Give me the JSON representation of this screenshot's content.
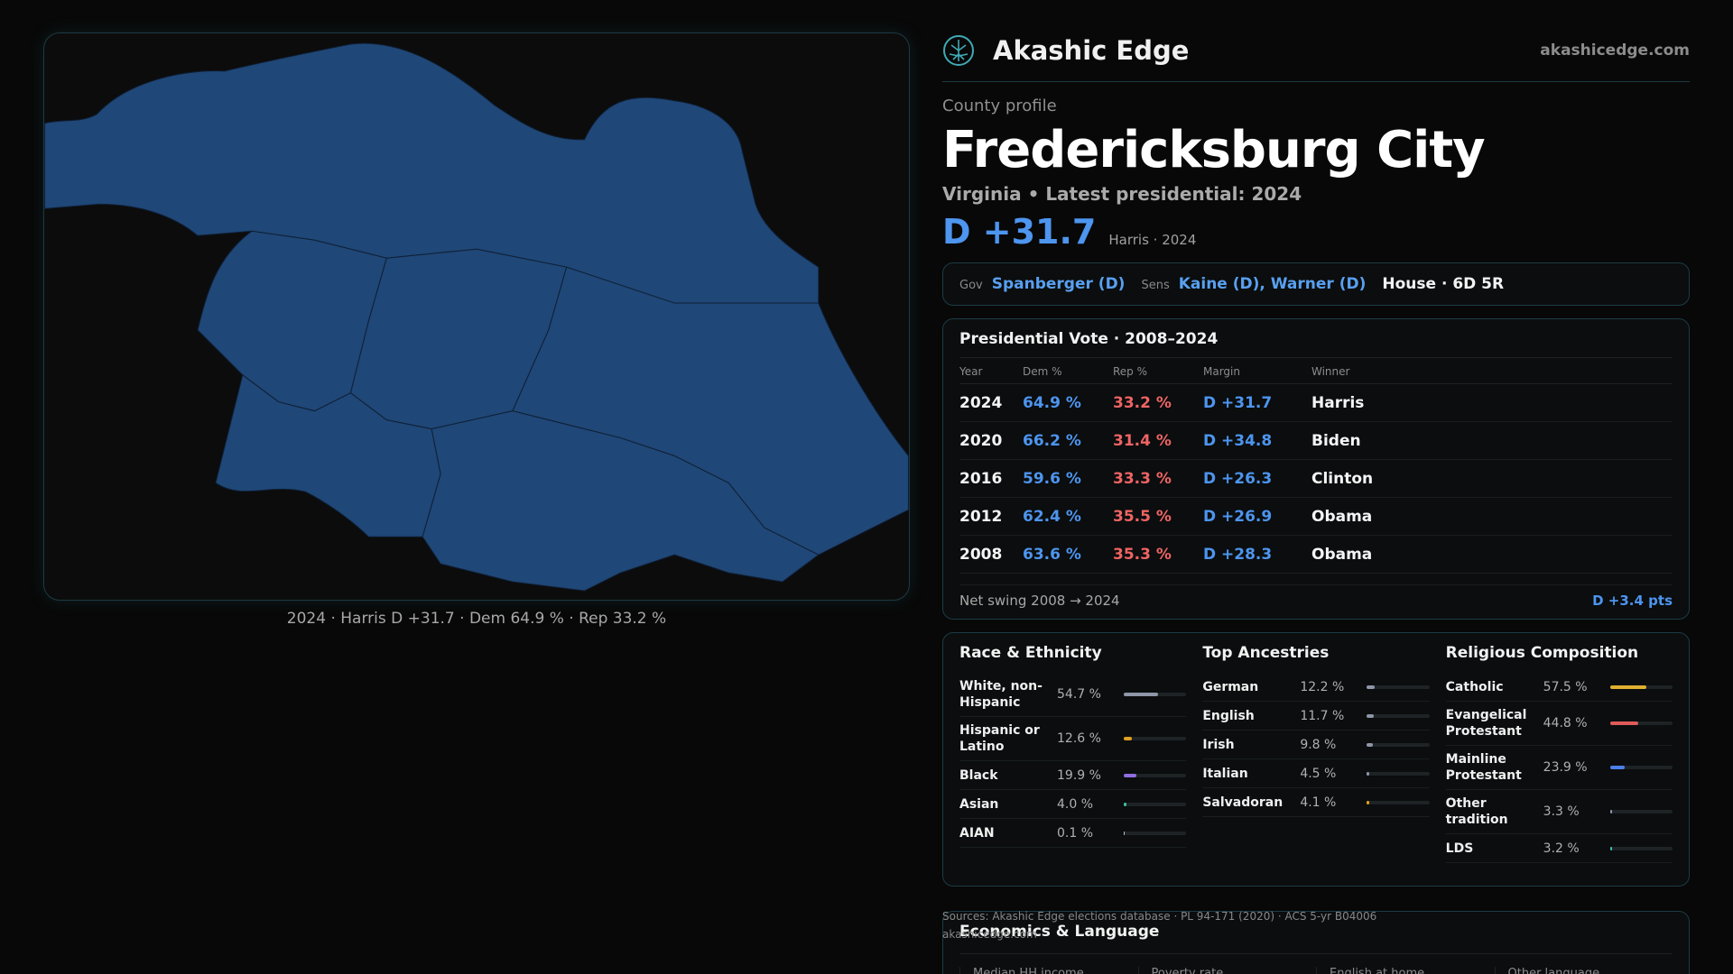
{
  "map": {
    "caption": "2024 · Harris D +31.7 · Dem 64.9 % · Rep 33.2 %",
    "fill_color": "#1f4777",
    "edge_color": "#0f1f35"
  },
  "brand": {
    "name": "Akashic Edge",
    "url": "akashicedge.com",
    "logo_icon": "tree-of-life-icon"
  },
  "profile": {
    "eyebrow": "County profile",
    "title": "Fredericksburg City",
    "subtitle": "Virginia • Latest presidential: 2024",
    "margin": "D +31.7",
    "margin_note": "Harris · 2024"
  },
  "officials": {
    "gov_label": "Gov",
    "gov": "Spanberger (D)",
    "sens_label": "Sens",
    "sens": "Kaine (D), Warner (D)",
    "house": "House · 6D 5R"
  },
  "votes": {
    "title": "Presidential Vote · 2008–2024",
    "headers": {
      "year": "Year",
      "dem": "Dem %",
      "rep": "Rep %",
      "margin": "Margin",
      "winner": "Winner"
    },
    "rows": [
      {
        "year": "2024",
        "dem": "64.9 %",
        "rep": "33.2 %",
        "margin": "D +31.7",
        "winner": "Harris"
      },
      {
        "year": "2020",
        "dem": "66.2 %",
        "rep": "31.4 %",
        "margin": "D +34.8",
        "winner": "Biden"
      },
      {
        "year": "2016",
        "dem": "59.6 %",
        "rep": "33.3 %",
        "margin": "D +26.3",
        "winner": "Clinton"
      },
      {
        "year": "2012",
        "dem": "62.4 %",
        "rep": "35.5 %",
        "margin": "D +26.9",
        "winner": "Obama"
      },
      {
        "year": "2008",
        "dem": "63.6 %",
        "rep": "35.3 %",
        "margin": "D +28.3",
        "winner": "Obama"
      }
    ],
    "swing_label": "Net swing 2008 → 2024",
    "swing_value": "D +3.4 pts"
  },
  "race": {
    "title": "Race & Ethnicity",
    "items": [
      {
        "label": "White, non-Hispanic",
        "value": "54.7 %",
        "pct": 54.7,
        "color": "#8e96a8"
      },
      {
        "label": "Hispanic or Latino",
        "value": "12.6 %",
        "pct": 12.6,
        "color": "#e0a020"
      },
      {
        "label": "Black",
        "value": "19.9 %",
        "pct": 19.9,
        "color": "#8f6ee0"
      },
      {
        "label": "Asian",
        "value": "4.0 %",
        "pct": 4.0,
        "color": "#3fbf9f"
      },
      {
        "label": "AIAN",
        "value": "0.1 %",
        "pct": 0.1,
        "color": "#c0c0c0"
      }
    ]
  },
  "ancestry": {
    "title": "Top Ancestries",
    "items": [
      {
        "label": "German",
        "value": "12.2 %",
        "pct": 12.2,
        "color": "#8e96a8"
      },
      {
        "label": "English",
        "value": "11.7 %",
        "pct": 11.7,
        "color": "#8e96a8"
      },
      {
        "label": "Irish",
        "value": "9.8 %",
        "pct": 9.8,
        "color": "#8e96a8"
      },
      {
        "label": "Italian",
        "value": "4.5 %",
        "pct": 4.5,
        "color": "#8e96a8"
      },
      {
        "label": "Salvadoran",
        "value": "4.1 %",
        "pct": 4.1,
        "color": "#e0a020"
      }
    ]
  },
  "religion": {
    "title": "Religious Composition",
    "items": [
      {
        "label": "Catholic",
        "value": "57.5 %",
        "pct": 57.5,
        "color": "#e0b030"
      },
      {
        "label": "Evangelical Protestant",
        "value": "44.8 %",
        "pct": 44.8,
        "color": "#e05a5a"
      },
      {
        "label": "Mainline Protestant",
        "value": "23.9 %",
        "pct": 23.9,
        "color": "#4d7fe8"
      },
      {
        "label": "Other tradition",
        "value": "3.3 %",
        "pct": 3.3,
        "color": "#8e96a8"
      },
      {
        "label": "LDS",
        "value": "3.2 %",
        "pct": 3.2,
        "color": "#3fbfbf"
      }
    ]
  },
  "sources": {
    "line1": "Sources: Akashic Edge elections database · PL 94-171 (2020) · ACS 5-yr B04006",
    "line2": "akashicedge.com"
  },
  "economics": {
    "title": "Economics & Language",
    "headers": [
      "Median HH income",
      "Poverty rate",
      "English at home",
      "Other language"
    ]
  }
}
